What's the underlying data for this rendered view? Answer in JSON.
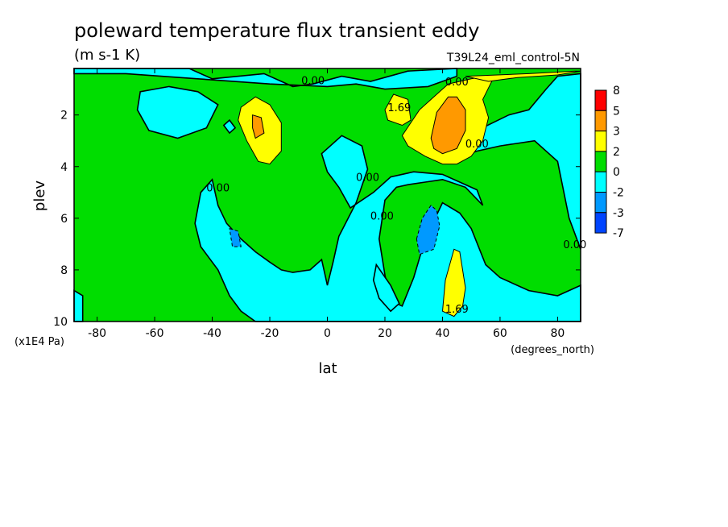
{
  "chart_data": {
    "type": "heatmap",
    "title": "poleward temperature flux transient eddy",
    "units": "(m s-1 K)",
    "run_label": "T39L24_eml_control-5N",
    "xlabel": "lat",
    "xunits": "(degrees_north)",
    "ylabel": "plev",
    "yunits": "(x1E4 Pa)",
    "xlim": [
      -88,
      88
    ],
    "ylim": [
      10,
      0.2
    ],
    "x_ticks": [
      -80,
      -60,
      -40,
      -20,
      0,
      20,
      40,
      60,
      80
    ],
    "x_tick_labels": [
      "-80",
      "-60",
      "-40",
      "-20",
      "0",
      "20",
      "40",
      "60",
      "80"
    ],
    "y_ticks": [
      2,
      4,
      6,
      8,
      10
    ],
    "y_tick_labels": [
      "2",
      "4",
      "6",
      "8",
      "10"
    ],
    "colorbar": {
      "labels": [
        "8",
        "5",
        "3",
        "2",
        "0",
        "-2",
        "-3",
        "-7"
      ],
      "colors": [
        "#ff0000",
        "#ff9900",
        "#ffff00",
        "#00dd00",
        "#00ffff",
        "#0099ff",
        "#0044ff"
      ]
    },
    "contour_labels": [
      {
        "text": "0.00",
        "lat": -5,
        "plev": 0.65
      },
      {
        "text": "0.00",
        "lat": 45,
        "plev": 0.7
      },
      {
        "text": "1.69",
        "lat": 25,
        "plev": 1.7
      },
      {
        "text": "0.00",
        "lat": 52,
        "plev": 3.1
      },
      {
        "text": "0.00",
        "lat": 14,
        "plev": 4.4
      },
      {
        "text": "0.00",
        "lat": -38,
        "plev": 4.8
      },
      {
        "text": "0.00",
        "lat": 19,
        "plev": 5.9
      },
      {
        "text": "0.00",
        "lat": 86,
        "plev": 7.0
      },
      {
        "text": "1.69",
        "lat": 45,
        "plev": 9.5
      }
    ],
    "regions": [
      {
        "value": 1,
        "points": [
          [
            -88,
            0.2
          ],
          [
            88,
            0.2
          ],
          [
            88,
            10
          ],
          [
            -88,
            10
          ]
        ]
      },
      {
        "value": -1,
        "points": [
          [
            -88,
            0.2
          ],
          [
            -48,
            0.2
          ],
          [
            -40,
            0.6
          ],
          [
            -22,
            0.4
          ],
          [
            -12,
            0.9
          ],
          [
            -5,
            0.8
          ],
          [
            5,
            0.5
          ],
          [
            15,
            0.7
          ],
          [
            28,
            0.3
          ],
          [
            45,
            0.2
          ],
          [
            45,
            0.5
          ],
          [
            35,
            0.9
          ],
          [
            20,
            1.0
          ],
          [
            10,
            0.8
          ],
          [
            0,
            0.9
          ],
          [
            -20,
            0.8
          ],
          [
            -45,
            0.6
          ],
          [
            -70,
            0.4
          ],
          [
            -88,
            0.4
          ]
        ]
      },
      {
        "value": -1,
        "points": [
          [
            -65,
            1.1
          ],
          [
            -55,
            0.9
          ],
          [
            -45,
            1.1
          ],
          [
            -38,
            1.6
          ],
          [
            -42,
            2.5
          ],
          [
            -52,
            2.9
          ],
          [
            -62,
            2.6
          ],
          [
            -66,
            1.8
          ]
        ]
      },
      {
        "value": -1,
        "points": [
          [
            -36,
            2.4
          ],
          [
            -34,
            2.2
          ],
          [
            -32,
            2.5
          ],
          [
            -34,
            2.7
          ]
        ]
      },
      {
        "value": -1,
        "points": [
          [
            63,
            2.0
          ],
          [
            70,
            1.8
          ],
          [
            76,
            1.0
          ],
          [
            80,
            0.5
          ],
          [
            88,
            0.4
          ],
          [
            88,
            7.2
          ],
          [
            84,
            6.0
          ],
          [
            80,
            3.8
          ],
          [
            72,
            3.0
          ],
          [
            60,
            3.2
          ],
          [
            52,
            3.4
          ],
          [
            44,
            3.7
          ],
          [
            42,
            3.5
          ],
          [
            52,
            2.6
          ]
        ]
      },
      {
        "value": -1,
        "points": [
          [
            -2,
            3.5
          ],
          [
            5,
            2.8
          ],
          [
            12,
            3.2
          ],
          [
            14,
            4.1
          ],
          [
            10,
            5.4
          ],
          [
            4,
            6.7
          ],
          [
            2,
            7.7
          ],
          [
            0,
            8.6
          ],
          [
            -2,
            7.6
          ],
          [
            -6,
            8.0
          ],
          [
            -12,
            8.1
          ],
          [
            -16,
            8.0
          ],
          [
            -20,
            7.7
          ],
          [
            -25,
            7.3
          ],
          [
            -30,
            6.8
          ],
          [
            -35,
            6.2
          ],
          [
            -38,
            5.5
          ],
          [
            -40,
            4.5
          ],
          [
            -44,
            5.0
          ],
          [
            -46,
            6.2
          ],
          [
            -44,
            7.1
          ],
          [
            -38,
            8.0
          ],
          [
            -34,
            9.0
          ],
          [
            -30,
            9.6
          ],
          [
            -25,
            10
          ],
          [
            88,
            10
          ],
          [
            88,
            8.6
          ],
          [
            80,
            9.0
          ],
          [
            70,
            8.8
          ],
          [
            60,
            8.3
          ],
          [
            55,
            7.8
          ],
          [
            50,
            6.4
          ],
          [
            46,
            5.8
          ],
          [
            40,
            5.4
          ],
          [
            34,
            6.8
          ],
          [
            30,
            8.3
          ],
          [
            26,
            9.4
          ],
          [
            22,
            9.2
          ],
          [
            20,
            8.2
          ],
          [
            18,
            6.8
          ],
          [
            20,
            5.3
          ],
          [
            24,
            4.8
          ],
          [
            28,
            4.7
          ],
          [
            34,
            4.6
          ],
          [
            40,
            4.5
          ],
          [
            48,
            4.8
          ],
          [
            54,
            5.5
          ],
          [
            52,
            4.9
          ],
          [
            40,
            4.3
          ],
          [
            30,
            4.2
          ],
          [
            22,
            4.4
          ],
          [
            16,
            5.0
          ],
          [
            8,
            5.6
          ],
          [
            4,
            4.8
          ],
          [
            0,
            4.2
          ]
        ]
      },
      {
        "value": -1,
        "points": [
          [
            17,
            7.8
          ],
          [
            22,
            8.6
          ],
          [
            25,
            9.3
          ],
          [
            22,
            9.6
          ],
          [
            18,
            9.1
          ],
          [
            16,
            8.4
          ]
        ]
      },
      {
        "value": -1,
        "points": [
          [
            -88,
            8.8
          ],
          [
            -85,
            9.0
          ],
          [
            -85,
            10
          ],
          [
            -88,
            10
          ]
        ]
      },
      {
        "value": -2,
        "points": [
          [
            -34,
            6.4
          ],
          [
            -31,
            6.5
          ],
          [
            -30,
            7.1
          ],
          [
            -33,
            7.1
          ]
        ]
      },
      {
        "value": -2,
        "points": [
          [
            31,
            6.8
          ],
          [
            33,
            6.0
          ],
          [
            36,
            5.5
          ],
          [
            38,
            5.7
          ],
          [
            39,
            6.3
          ],
          [
            37,
            7.2
          ],
          [
            32,
            7.4
          ]
        ]
      },
      {
        "value": 2,
        "points": [
          [
            -30,
            1.7
          ],
          [
            -25,
            1.3
          ],
          [
            -20,
            1.6
          ],
          [
            -16,
            2.3
          ],
          [
            -16,
            3.4
          ],
          [
            -20,
            3.9
          ],
          [
            -24,
            3.8
          ],
          [
            -28,
            3.0
          ],
          [
            -31,
            2.2
          ]
        ]
      },
      {
        "value": 2,
        "points": [
          [
            20,
            1.8
          ],
          [
            23,
            1.2
          ],
          [
            28,
            1.4
          ],
          [
            29,
            2.2
          ],
          [
            26,
            2.4
          ],
          [
            21,
            2.2
          ]
        ]
      },
      {
        "value": 2,
        "points": [
          [
            26,
            2.8
          ],
          [
            32,
            1.8
          ],
          [
            38,
            1.2
          ],
          [
            42,
            0.8
          ],
          [
            50,
            0.6
          ],
          [
            55,
            0.5
          ],
          [
            58,
            0.5
          ],
          [
            54,
            1.4
          ],
          [
            56,
            2.1
          ],
          [
            54,
            3.0
          ],
          [
            50,
            3.6
          ],
          [
            45,
            3.9
          ],
          [
            40,
            3.9
          ],
          [
            34,
            3.6
          ],
          [
            28,
            3.2
          ]
        ]
      },
      {
        "value": 2,
        "points": [
          [
            48,
            0.5
          ],
          [
            70,
            0.4
          ],
          [
            86,
            0.3
          ],
          [
            88,
            0.3
          ],
          [
            80,
            0.45
          ],
          [
            66,
            0.55
          ],
          [
            56,
            0.7
          ]
        ]
      },
      {
        "value": 2,
        "points": [
          [
            41,
            8.4
          ],
          [
            44,
            7.2
          ],
          [
            46,
            7.3
          ],
          [
            48,
            8.7
          ],
          [
            47,
            9.4
          ],
          [
            44,
            9.8
          ],
          [
            40,
            9.6
          ]
        ]
      },
      {
        "value": 3,
        "points": [
          [
            -26,
            2.0
          ],
          [
            -23,
            2.1
          ],
          [
            -22,
            2.7
          ],
          [
            -25,
            2.9
          ],
          [
            -26,
            2.5
          ]
        ]
      },
      {
        "value": 3,
        "points": [
          [
            36,
            2.9
          ],
          [
            38,
            1.9
          ],
          [
            42,
            1.3
          ],
          [
            45,
            1.3
          ],
          [
            48,
            1.8
          ],
          [
            48,
            2.6
          ],
          [
            45,
            3.3
          ],
          [
            40,
            3.5
          ],
          [
            37,
            3.3
          ]
        ]
      }
    ]
  }
}
